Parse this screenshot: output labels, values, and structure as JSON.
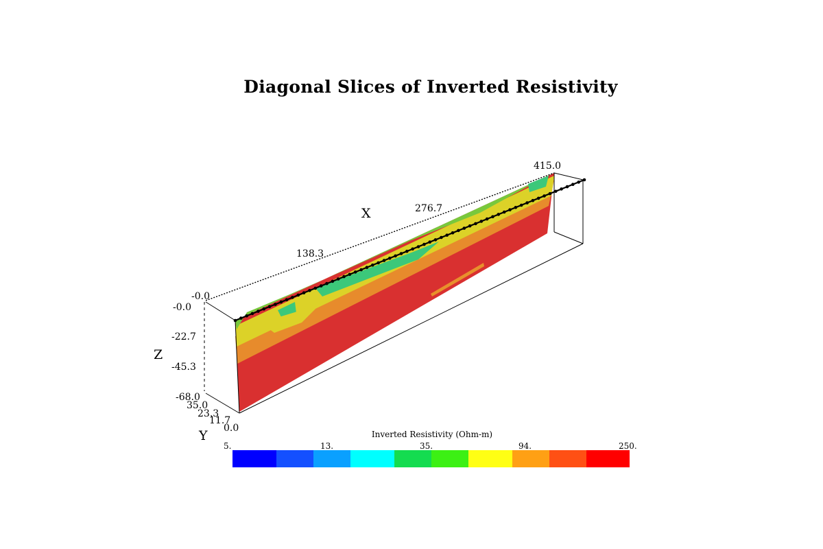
{
  "title": "Diagonal Slices of Inverted Resistivity",
  "axes": {
    "x": {
      "name": "X",
      "ticks": [
        "-0.0",
        "138.3",
        "276.7",
        "415.0"
      ]
    },
    "y": {
      "name": "Y",
      "ticks": [
        "35.0",
        "23.3",
        "11.7",
        "0.0"
      ]
    },
    "z": {
      "name": "Z",
      "ticks": [
        "-0.0",
        "-22.7",
        "-45.3",
        "-68.0"
      ]
    }
  },
  "colorbar": {
    "title": "Inverted Resistivity (Ohm-m)",
    "tick_labels": [
      "5.",
      "13.",
      "35.",
      "94.",
      "250."
    ],
    "colors": [
      "#0000ff",
      "#1450ff",
      "#0aa0ff",
      "#00ffff",
      "#14dc50",
      "#3cf014",
      "#ffff14",
      "#ffa014",
      "#ff5014",
      "#ff0000"
    ]
  },
  "slice_colors": {
    "deep_red": "#d93030",
    "orange": "#e8902c",
    "yellow": "#dcd228",
    "green": "#78c83c",
    "teal": "#3cc87a"
  }
}
